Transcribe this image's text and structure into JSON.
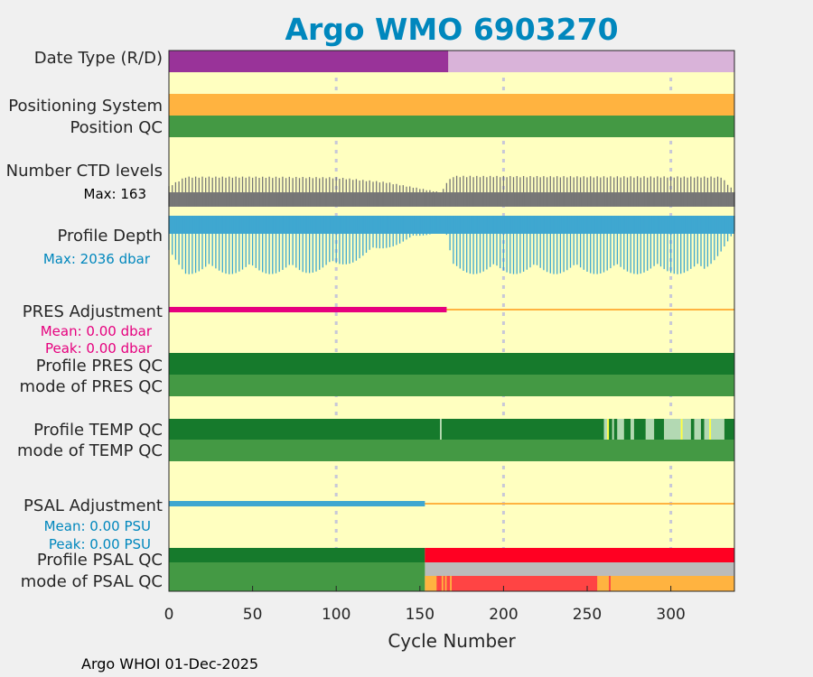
{
  "chart_data": {
    "type": "heatmap",
    "title": "Argo WMO 6903270",
    "xlabel": "Cycle Number",
    "xlim": [
      0,
      338
    ],
    "xticks": [
      0,
      50,
      100,
      150,
      200,
      250,
      300
    ],
    "footer": "Argo WHOI 01-Dec-2025",
    "rows": {
      "date_type": {
        "label": "Date Type (R/D)",
        "segments": [
          {
            "from": 0,
            "to": 167,
            "color": "#993399"
          },
          {
            "from": 167,
            "to": 338,
            "color": "#d9b3d9"
          }
        ]
      },
      "positioning_system": {
        "label": "Positioning System",
        "segments": [
          {
            "from": 0,
            "to": 338,
            "color": "#ffb340"
          }
        ]
      },
      "position_qc": {
        "label": "Position QC",
        "segments": [
          {
            "from": 0,
            "to": 338,
            "color": "#449944"
          }
        ]
      },
      "ctd_levels": {
        "label": "Number CTD levels",
        "note": "Max: 163",
        "color": "#777777",
        "max": 163,
        "base_frac": 0.42,
        "points": [
          [
            0,
            0.6
          ],
          [
            10,
            0.88
          ],
          [
            50,
            0.88
          ],
          [
            100,
            0.86
          ],
          [
            130,
            0.72
          ],
          [
            163,
            0.42
          ],
          [
            166,
            0.72
          ],
          [
            170,
            0.9
          ],
          [
            330,
            0.88
          ],
          [
            338,
            0.45
          ]
        ]
      },
      "profile_depth": {
        "label": "Profile Depth",
        "note": "Max: 2036 dbar",
        "color": "#3fa7d0",
        "max": 2036,
        "points": [
          [
            0,
            0.7
          ],
          [
            10,
            0.98
          ],
          [
            80,
            0.98
          ],
          [
            100,
            0.9
          ],
          [
            130,
            0.55
          ],
          [
            163,
            0.25
          ],
          [
            166,
            0.35
          ],
          [
            170,
            0.98
          ],
          [
            320,
            0.98
          ],
          [
            338,
            0.3
          ]
        ]
      },
      "pres_adjustment": {
        "label": "PRES Adjustment",
        "mean": "Mean: 0.00 dbar",
        "peak": "Peak: 0.00 dbar",
        "color": "#e6007e",
        "adjusted_to": 166,
        "line_color": "#ffb340"
      },
      "profile_pres_qc": {
        "label": "Profile PRES QC",
        "segments": [
          {
            "from": 0,
            "to": 338,
            "color": "#167a2c"
          }
        ]
      },
      "mode_pres_qc": {
        "label": "mode of PRES QC",
        "segments": [
          {
            "from": 0,
            "to": 338,
            "color": "#449944"
          }
        ]
      },
      "profile_temp_qc": {
        "label": "Profile TEMP QC",
        "segments": [
          {
            "from": 0,
            "to": 162,
            "color": "#167a2c"
          },
          {
            "from": 162,
            "to": 163,
            "color": "#b3d9b3"
          },
          {
            "from": 163,
            "to": 260,
            "color": "#167a2c"
          },
          {
            "from": 260,
            "to": 262,
            "color": "#b3d9b3"
          },
          {
            "from": 262,
            "to": 263,
            "color": "#ffff40"
          },
          {
            "from": 263,
            "to": 265,
            "color": "#167a2c"
          },
          {
            "from": 265,
            "to": 266,
            "color": "#b3d9b3"
          },
          {
            "from": 266,
            "to": 268,
            "color": "#167a2c"
          },
          {
            "from": 268,
            "to": 272,
            "color": "#b3d9b3"
          },
          {
            "from": 272,
            "to": 276,
            "color": "#167a2c"
          },
          {
            "from": 276,
            "to": 278,
            "color": "#b3d9b3"
          },
          {
            "from": 278,
            "to": 285,
            "color": "#167a2c"
          },
          {
            "from": 285,
            "to": 290,
            "color": "#b3d9b3"
          },
          {
            "from": 290,
            "to": 296,
            "color": "#167a2c"
          },
          {
            "from": 296,
            "to": 306,
            "color": "#b3d9b3"
          },
          {
            "from": 306,
            "to": 307,
            "color": "#ffff40"
          },
          {
            "from": 307,
            "to": 312,
            "color": "#b3d9b3"
          },
          {
            "from": 312,
            "to": 314,
            "color": "#167a2c"
          },
          {
            "from": 314,
            "to": 318,
            "color": "#b3d9b3"
          },
          {
            "from": 318,
            "to": 320,
            "color": "#167a2c"
          },
          {
            "from": 320,
            "to": 323,
            "color": "#b3d9b3"
          },
          {
            "from": 323,
            "to": 324,
            "color": "#ffff40"
          },
          {
            "from": 324,
            "to": 332,
            "color": "#b3d9b3"
          },
          {
            "from": 332,
            "to": 338,
            "color": "#167a2c"
          }
        ]
      },
      "mode_temp_qc": {
        "label": "mode of TEMP QC",
        "segments": [
          {
            "from": 0,
            "to": 338,
            "color": "#449944"
          }
        ]
      },
      "psal_adjustment": {
        "label": "PSAL Adjustment",
        "mean": "Mean: 0.00 PSU",
        "peak": "Peak: 0.00 PSU",
        "color": "#3fa7d0",
        "adjusted_to": 153,
        "line_color": "#ffb340"
      },
      "profile_psal_qc": {
        "label": "Profile PSAL QC",
        "segments": [
          {
            "from": 0,
            "to": 153,
            "color": "#167a2c"
          },
          {
            "from": 153,
            "to": 338,
            "color": "#ff0022"
          }
        ]
      },
      "mode_psal_qc": {
        "label": "mode of PSAL QC",
        "segments": [
          {
            "from": 0,
            "to": 153,
            "color": "#449944"
          },
          {
            "from": 153,
            "to": 338,
            "color": "#ffb340"
          }
        ],
        "segments_lower": [
          {
            "from": 160,
            "to": 163,
            "color": "#ff4444"
          },
          {
            "from": 164,
            "to": 165,
            "color": "#ff4444"
          },
          {
            "from": 166,
            "to": 168,
            "color": "#ff4444"
          },
          {
            "from": 169,
            "to": 256,
            "color": "#ff4444"
          },
          {
            "from": 263,
            "to": 264,
            "color": "#ff4444"
          }
        ],
        "upper_band_color": "#bbbbbb"
      }
    }
  }
}
